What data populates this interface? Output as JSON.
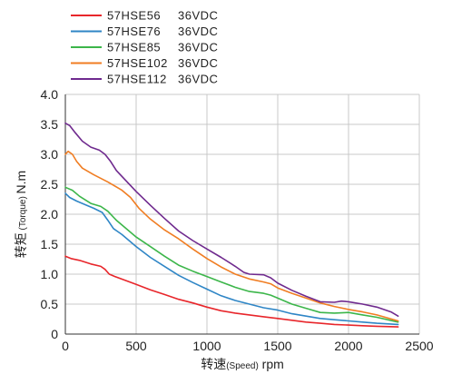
{
  "chart_data": {
    "type": "line",
    "xlabel": {
      "prefix": "转速",
      "paren": "(Speed)",
      "unit": " rpm"
    },
    "ylabel": {
      "prefix": "转矩",
      "paren": "(Torque)",
      "unit": "N.m"
    },
    "xlim": [
      0,
      2500
    ],
    "ylim": [
      0,
      4.0
    ],
    "x_ticks": [
      "0",
      "500",
      "1000",
      "1500",
      "2000",
      "2500"
    ],
    "y_ticks": [
      "0",
      "0.5",
      "1.0",
      "1.5",
      "2.0",
      "2.5",
      "3.0",
      "3.5",
      "4.0"
    ],
    "grid": true,
    "legend_position": "top-left",
    "series": [
      {
        "name": "57HSE56",
        "voltage": "36VDC",
        "color": "#e8262b",
        "points": [
          [
            0,
            1.3
          ],
          [
            40,
            1.26
          ],
          [
            100,
            1.23
          ],
          [
            180,
            1.17
          ],
          [
            250,
            1.13
          ],
          [
            280,
            1.08
          ],
          [
            310,
            1.0
          ],
          [
            350,
            0.96
          ],
          [
            420,
            0.9
          ],
          [
            500,
            0.83
          ],
          [
            600,
            0.74
          ],
          [
            700,
            0.66
          ],
          [
            800,
            0.58
          ],
          [
            900,
            0.52
          ],
          [
            1000,
            0.45
          ],
          [
            1100,
            0.39
          ],
          [
            1200,
            0.35
          ],
          [
            1300,
            0.32
          ],
          [
            1400,
            0.29
          ],
          [
            1500,
            0.26
          ],
          [
            1600,
            0.23
          ],
          [
            1700,
            0.2
          ],
          [
            1800,
            0.18
          ],
          [
            1900,
            0.16
          ],
          [
            2000,
            0.15
          ],
          [
            2100,
            0.14
          ],
          [
            2200,
            0.13
          ],
          [
            2350,
            0.12
          ]
        ]
      },
      {
        "name": "57HSE76",
        "voltage": "36VDC",
        "color": "#2f86c6",
        "points": [
          [
            0,
            2.35
          ],
          [
            30,
            2.28
          ],
          [
            80,
            2.22
          ],
          [
            150,
            2.15
          ],
          [
            200,
            2.1
          ],
          [
            260,
            2.03
          ],
          [
            300,
            1.9
          ],
          [
            340,
            1.76
          ],
          [
            400,
            1.66
          ],
          [
            500,
            1.46
          ],
          [
            600,
            1.28
          ],
          [
            700,
            1.13
          ],
          [
            800,
            0.98
          ],
          [
            900,
            0.86
          ],
          [
            1000,
            0.75
          ],
          [
            1100,
            0.64
          ],
          [
            1200,
            0.56
          ],
          [
            1300,
            0.5
          ],
          [
            1400,
            0.44
          ],
          [
            1500,
            0.4
          ],
          [
            1600,
            0.34
          ],
          [
            1700,
            0.3
          ],
          [
            1800,
            0.26
          ],
          [
            1900,
            0.24
          ],
          [
            2000,
            0.22
          ],
          [
            2100,
            0.2
          ],
          [
            2200,
            0.18
          ],
          [
            2350,
            0.16
          ]
        ]
      },
      {
        "name": "57HSE85",
        "voltage": "36VDC",
        "color": "#3cb64a",
        "points": [
          [
            0,
            2.45
          ],
          [
            50,
            2.4
          ],
          [
            100,
            2.3
          ],
          [
            180,
            2.18
          ],
          [
            250,
            2.13
          ],
          [
            300,
            2.05
          ],
          [
            360,
            1.9
          ],
          [
            420,
            1.78
          ],
          [
            500,
            1.62
          ],
          [
            600,
            1.46
          ],
          [
            700,
            1.3
          ],
          [
            800,
            1.15
          ],
          [
            900,
            1.05
          ],
          [
            1000,
            0.96
          ],
          [
            1100,
            0.87
          ],
          [
            1200,
            0.78
          ],
          [
            1300,
            0.71
          ],
          [
            1400,
            0.68
          ],
          [
            1450,
            0.65
          ],
          [
            1500,
            0.6
          ],
          [
            1600,
            0.5
          ],
          [
            1700,
            0.43
          ],
          [
            1800,
            0.36
          ],
          [
            1900,
            0.35
          ],
          [
            2000,
            0.36
          ],
          [
            2100,
            0.32
          ],
          [
            2200,
            0.28
          ],
          [
            2350,
            0.2
          ]
        ]
      },
      {
        "name": "57HSE102",
        "voltage": "36VDC",
        "color": "#f07d22",
        "points": [
          [
            0,
            3.0
          ],
          [
            20,
            3.05
          ],
          [
            50,
            3.0
          ],
          [
            80,
            2.88
          ],
          [
            120,
            2.77
          ],
          [
            200,
            2.66
          ],
          [
            300,
            2.54
          ],
          [
            400,
            2.4
          ],
          [
            460,
            2.28
          ],
          [
            520,
            2.1
          ],
          [
            600,
            1.92
          ],
          [
            700,
            1.74
          ],
          [
            800,
            1.59
          ],
          [
            900,
            1.42
          ],
          [
            1000,
            1.26
          ],
          [
            1100,
            1.12
          ],
          [
            1200,
            1.0
          ],
          [
            1300,
            0.92
          ],
          [
            1400,
            0.87
          ],
          [
            1450,
            0.84
          ],
          [
            1500,
            0.77
          ],
          [
            1600,
            0.68
          ],
          [
            1700,
            0.6
          ],
          [
            1800,
            0.52
          ],
          [
            1900,
            0.46
          ],
          [
            2000,
            0.41
          ],
          [
            2100,
            0.37
          ],
          [
            2200,
            0.32
          ],
          [
            2350,
            0.22
          ]
        ]
      },
      {
        "name": "57HSE112",
        "voltage": "36VDC",
        "color": "#6f2a8e",
        "points": [
          [
            0,
            3.52
          ],
          [
            30,
            3.48
          ],
          [
            70,
            3.36
          ],
          [
            120,
            3.22
          ],
          [
            180,
            3.12
          ],
          [
            240,
            3.07
          ],
          [
            280,
            3.0
          ],
          [
            320,
            2.88
          ],
          [
            360,
            2.73
          ],
          [
            420,
            2.58
          ],
          [
            500,
            2.38
          ],
          [
            600,
            2.15
          ],
          [
            700,
            1.93
          ],
          [
            800,
            1.72
          ],
          [
            900,
            1.56
          ],
          [
            1000,
            1.42
          ],
          [
            1100,
            1.28
          ],
          [
            1200,
            1.13
          ],
          [
            1260,
            1.03
          ],
          [
            1300,
            1.0
          ],
          [
            1400,
            0.99
          ],
          [
            1450,
            0.94
          ],
          [
            1500,
            0.85
          ],
          [
            1600,
            0.73
          ],
          [
            1700,
            0.63
          ],
          [
            1800,
            0.54
          ],
          [
            1900,
            0.53
          ],
          [
            1950,
            0.55
          ],
          [
            2000,
            0.54
          ],
          [
            2100,
            0.5
          ],
          [
            2200,
            0.45
          ],
          [
            2300,
            0.37
          ],
          [
            2350,
            0.3
          ]
        ]
      }
    ]
  }
}
